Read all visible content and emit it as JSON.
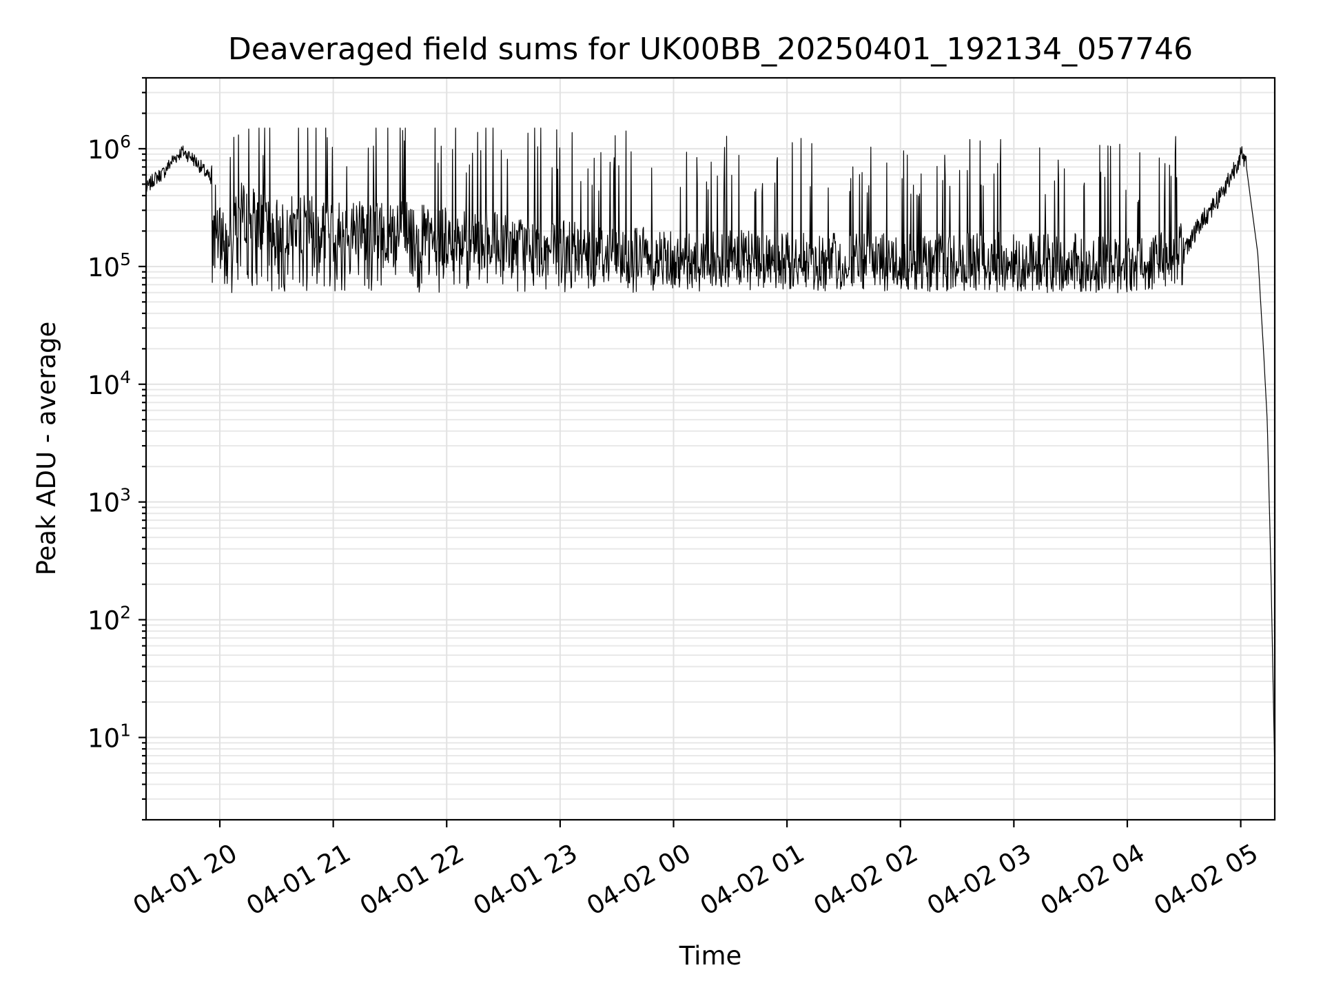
{
  "chart_data": {
    "type": "line",
    "title": "Deaveraged field sums for UK00BB_20250401_192134_057746",
    "xlabel": "Time",
    "ylabel": "Peak ADU - average",
    "x_scale": "time",
    "y_scale": "log",
    "xlim": [
      "2025-04-01 19:21",
      "2025-04-02 05:18"
    ],
    "ylim": [
      2,
      4000000
    ],
    "grid": true,
    "line_color": "#000000",
    "x_ticks": [
      {
        "t": "2025-04-01 20:00",
        "label": "04-01 20"
      },
      {
        "t": "2025-04-01 21:00",
        "label": "04-01 21"
      },
      {
        "t": "2025-04-01 22:00",
        "label": "04-01 22"
      },
      {
        "t": "2025-04-01 23:00",
        "label": "04-01 23"
      },
      {
        "t": "2025-04-02 00:00",
        "label": "04-02 00"
      },
      {
        "t": "2025-04-02 01:00",
        "label": "04-02 01"
      },
      {
        "t": "2025-04-02 02:00",
        "label": "04-02 02"
      },
      {
        "t": "2025-04-02 03:00",
        "label": "04-02 03"
      },
      {
        "t": "2025-04-02 04:00",
        "label": "04-02 04"
      },
      {
        "t": "2025-04-02 05:00",
        "label": "04-02 05"
      }
    ],
    "y_ticks": [
      {
        "value": 10,
        "base": "10",
        "exp": "1"
      },
      {
        "value": 100,
        "base": "10",
        "exp": "2"
      },
      {
        "value": 1000,
        "base": "10",
        "exp": "3"
      },
      {
        "value": 10000,
        "base": "10",
        "exp": "4"
      },
      {
        "value": 100000,
        "base": "10",
        "exp": "5"
      },
      {
        "value": 1000000,
        "base": "10",
        "exp": "6"
      }
    ],
    "series": [
      {
        "x": [
          "2025-04-01 19:21",
          "2025-04-01 19:25",
          "2025-04-01 19:30",
          "2025-04-01 19:35",
          "2025-04-01 19:40",
          "2025-04-01 19:45",
          "2025-04-01 19:50",
          "2025-04-01 19:55",
          "2025-04-01 20:00",
          "2025-04-01 20:10",
          "2025-04-01 20:20",
          "2025-04-01 20:30",
          "2025-04-01 20:45",
          "2025-04-01 21:00",
          "2025-04-01 21:15",
          "2025-04-01 21:30",
          "2025-04-01 21:45",
          "2025-04-01 22:00",
          "2025-04-01 22:15",
          "2025-04-01 22:30",
          "2025-04-01 22:45",
          "2025-04-01 23:00",
          "2025-04-01 23:30",
          "2025-04-02 00:00",
          "2025-04-02 00:30",
          "2025-04-02 01:00",
          "2025-04-02 01:30",
          "2025-04-02 02:00",
          "2025-04-02 02:30",
          "2025-04-02 03:00",
          "2025-04-02 03:30",
          "2025-04-02 04:00",
          "2025-04-02 04:20",
          "2025-04-02 04:30",
          "2025-04-02 04:40",
          "2025-04-02 04:50",
          "2025-04-02 04:55",
          "2025-04-02 05:00",
          "2025-04-02 05:03",
          "2025-04-02 05:06",
          "2025-04-02 05:09",
          "2025-04-02 05:12",
          "2025-04-02 05:14",
          "2025-04-02 05:16",
          "2025-04-02 05:18"
        ],
        "y": [
          450000,
          550000,
          620000,
          800000,
          950000,
          850000,
          700000,
          550000,
          180000,
          300000,
          250000,
          220000,
          230000,
          200000,
          220000,
          210000,
          190000,
          180000,
          170000,
          160000,
          150000,
          140000,
          130000,
          120000,
          115000,
          110000,
          110000,
          110000,
          110000,
          110000,
          108000,
          105000,
          110000,
          140000,
          250000,
          420000,
          600000,
          900000,
          700000,
          300000,
          130000,
          20000,
          5000,
          250,
          5
        ]
      }
    ],
    "noise": {
      "seed": 7,
      "points": 2200,
      "typical_low": 60000,
      "spike_max": 1500000
    }
  }
}
